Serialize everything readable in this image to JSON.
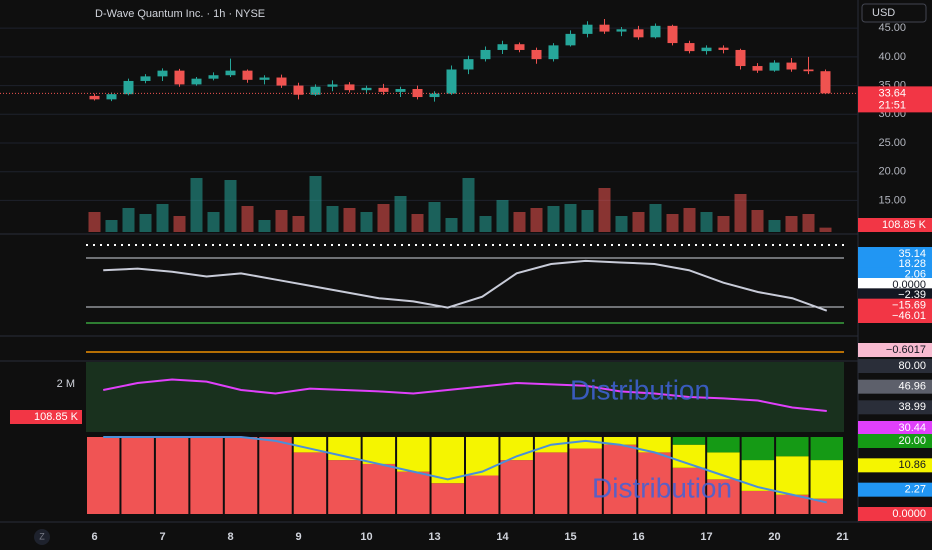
{
  "header": {
    "title": "D-Wave Quantum Inc. · 1h · NYSE",
    "currency": "USD",
    "zoom_button": "Z"
  },
  "chart_data": [
    {
      "type": "candlestick",
      "categories": [
        "6",
        null,
        null,
        null,
        "7",
        null,
        null,
        null,
        "8",
        null,
        null,
        null,
        "9",
        null,
        null,
        null,
        "10",
        null,
        null,
        null,
        "13",
        null,
        null,
        null,
        "14",
        null,
        null,
        null,
        "15",
        null,
        null,
        null,
        "16",
        null,
        null,
        null,
        "17",
        null,
        null,
        null,
        "20",
        null,
        null,
        null,
        "21"
      ],
      "open": [
        33.2,
        32.6,
        33.5,
        35.8,
        36.6,
        37.6,
        35.2,
        36.2,
        36.8,
        37.6,
        36.0,
        36.4,
        35.0,
        33.4,
        34.8,
        35.2,
        34.2,
        34.6,
        33.9,
        34.4,
        33.0,
        33.6,
        37.8,
        39.6,
        41.2,
        42.2,
        41.2,
        39.6,
        42.0,
        44.0,
        45.6,
        44.4,
        44.8,
        43.4,
        45.4,
        42.4,
        41.0,
        41.6,
        41.2,
        38.4,
        37.6,
        39.0,
        37.8,
        37.5,
        null
      ],
      "high": [
        33.6,
        33.8,
        36.2,
        37.0,
        38.0,
        37.9,
        36.5,
        37.3,
        39.7,
        37.8,
        36.8,
        36.9,
        35.5,
        35.2,
        35.9,
        35.6,
        35.0,
        35.3,
        34.8,
        35.0,
        34.0,
        38.5,
        40.2,
        41.8,
        42.8,
        42.5,
        41.6,
        42.4,
        44.6,
        46.2,
        46.6,
        45.2,
        45.4,
        45.8,
        45.6,
        42.8,
        42.0,
        42.0,
        41.4,
        38.9,
        39.4,
        39.8,
        40.0,
        37.8,
        null
      ],
      "low": [
        32.4,
        32.3,
        33.3,
        35.4,
        35.8,
        34.8,
        35.0,
        35.9,
        36.5,
        35.5,
        35.2,
        34.6,
        32.6,
        33.2,
        34.0,
        33.8,
        33.5,
        33.4,
        33.0,
        32.6,
        32.2,
        33.4,
        37.0,
        39.2,
        40.5,
        40.8,
        38.8,
        39.2,
        41.8,
        43.4,
        44.0,
        43.6,
        43.0,
        43.2,
        42.0,
        40.6,
        40.4,
        40.6,
        37.8,
        37.2,
        37.4,
        37.4,
        37.0,
        33.5,
        null
      ],
      "close": [
        32.6,
        33.5,
        35.8,
        36.6,
        37.6,
        35.2,
        36.2,
        36.8,
        37.6,
        36.0,
        36.4,
        35.0,
        33.4,
        34.8,
        35.2,
        34.2,
        34.6,
        33.9,
        34.4,
        33.0,
        33.6,
        37.8,
        39.6,
        41.2,
        42.2,
        41.2,
        39.6,
        42.0,
        44.0,
        45.6,
        44.4,
        44.8,
        43.4,
        45.4,
        42.4,
        41.0,
        41.6,
        41.2,
        38.4,
        37.6,
        39.0,
        37.8,
        37.5,
        33.64,
        null
      ],
      "up_color": "#26a69a",
      "down_color": "#ef5350",
      "ylim": [
        9.5,
        49.9
      ],
      "yticks": [
        {
          "value": 15,
          "label": "15.00"
        },
        {
          "value": 20,
          "label": "20.00"
        },
        {
          "value": 25,
          "label": "25.00"
        },
        {
          "value": 30,
          "label": "30.00"
        },
        {
          "value": 35,
          "label": "35.00"
        },
        {
          "value": 40,
          "label": "40.00"
        },
        {
          "value": 45,
          "label": "45.00"
        }
      ],
      "last_price": 33.64,
      "countdown": "21:51",
      "volume": [
        500,
        300,
        600,
        450,
        700,
        400,
        1350,
        500,
        1300,
        650,
        300,
        550,
        400,
        1400,
        650,
        600,
        500,
        700,
        900,
        450,
        750,
        350,
        1350,
        400,
        800,
        500,
        600,
        650,
        700,
        550,
        1100,
        400,
        500,
        700,
        450,
        600,
        500,
        400,
        950,
        550,
        300,
        400,
        450,
        108.85,
        null
      ],
      "volume_ylim": [
        0,
        1500
      ],
      "volume_label": "108.85 K"
    },
    {
      "type": "line",
      "series": [
        {
          "color": "#c8cbd8",
          "values": [
            12,
            13,
            11,
            8,
            10,
            6,
            2,
            -2,
            -6,
            -8,
            -12,
            -5,
            10,
            16,
            18,
            17,
            16,
            12,
            4,
            -2,
            -6,
            -14
          ]
        }
      ],
      "ylim": [
        -20,
        25
      ],
      "badges": [
        {
          "label": "35.14",
          "color": "#2196f3",
          "text_color": "#ffffff"
        },
        {
          "label": "18.28",
          "color": "#2196f3",
          "text_color": "#ffffff"
        },
        {
          "label": "2.06",
          "color": "#2196f3",
          "text_color": "#ffffff"
        },
        {
          "label": "0.0000",
          "color": "#ffffff",
          "text_color": "#131722"
        },
        {
          "label": "−2.39",
          "color": "#131722",
          "text_color": "#ffffff"
        },
        {
          "label": "−15.69",
          "color": "#f23645",
          "text_color": "#ffffff"
        },
        {
          "label": "−46.01",
          "color": "#f23645",
          "text_color": "#ffffff"
        }
      ]
    },
    {
      "type": "badges",
      "badges": [
        {
          "label": "−0.6017",
          "color": "#f8bbd0",
          "text_color": "#131722"
        }
      ]
    },
    {
      "type": "line",
      "series": [
        {
          "color": "#e040fb",
          "values": [
            60,
            70,
            75,
            72,
            60,
            55,
            62,
            60,
            58,
            55,
            60,
            65,
            70,
            68,
            66,
            58,
            55,
            50,
            48,
            45,
            35,
            30
          ]
        }
      ],
      "ylim": [
        0,
        100
      ],
      "badges": [
        {
          "label": "80.00",
          "color": "#2a2e39",
          "text_color": "#ffffff"
        },
        {
          "label": "46.96",
          "color": "#5d606b",
          "text_color": "#ffffff"
        },
        {
          "label": "38.99",
          "color": "#2a2e39",
          "text_color": "#ffffff"
        },
        {
          "label": "30.44",
          "color": "#e040fb",
          "text_color": "#ffffff"
        }
      ],
      "scale_label": "2 M",
      "volume_label": "108.85 K",
      "annotation": "Distribution"
    },
    {
      "type": "stacked_bar",
      "series": [
        {
          "color": "#f05454",
          "values": [
            20,
            20,
            20,
            20,
            20,
            20,
            16,
            14,
            13,
            11,
            8,
            10,
            14,
            16,
            17,
            18,
            16,
            12,
            9,
            6,
            5,
            4
          ]
        },
        {
          "color": "#f5f500",
          "values": [
            0,
            0,
            0,
            0,
            0,
            0,
            4,
            6,
            7,
            9,
            12,
            10,
            6,
            4,
            3,
            2,
            4,
            6,
            7,
            8,
            10,
            10
          ]
        },
        {
          "color": "#159a15",
          "values": [
            0,
            0,
            0,
            0,
            0,
            0,
            0,
            0,
            0,
            0,
            0,
            0,
            0,
            0,
            0,
            0,
            0,
            2,
            4,
            6,
            5,
            6
          ]
        }
      ],
      "line": {
        "color": "#4a90d9",
        "values": [
          20,
          20,
          20,
          20,
          20,
          19,
          17,
          15,
          13,
          11,
          9,
          11,
          15,
          18,
          19,
          18,
          16,
          13,
          10,
          7,
          5,
          3
        ]
      },
      "ylim": [
        0,
        20
      ],
      "badges": [
        {
          "label": "20.00",
          "color": "#159a15",
          "text_color": "#ffffff"
        },
        {
          "label": "10.86",
          "color": "#f5f500",
          "text_color": "#131722"
        },
        {
          "label": "2.27",
          "color": "#2196f3",
          "text_color": "#ffffff"
        },
        {
          "label": "0.0000",
          "color": "#f23645",
          "text_color": "#ffffff"
        }
      ],
      "annotation": "Distribution"
    }
  ]
}
